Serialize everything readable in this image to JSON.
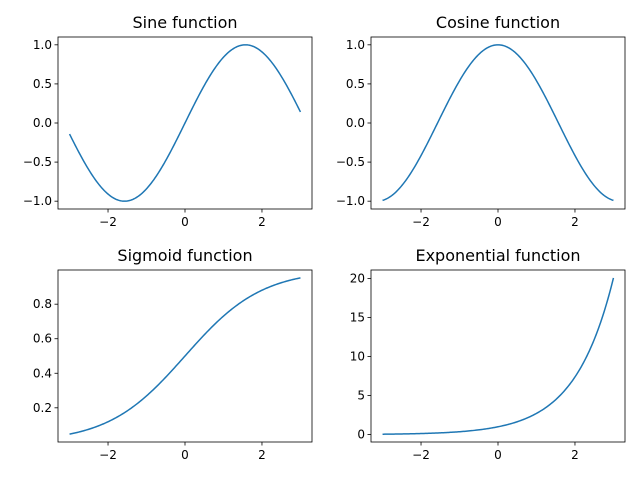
{
  "chart_data": [
    {
      "type": "line",
      "title": "Sine function",
      "function": "sin(x)",
      "x_range": [
        -3,
        3
      ],
      "xlim": [
        -3.3,
        3.3
      ],
      "ylim": [
        -1.1,
        1.1
      ],
      "xticks": [
        -2,
        0,
        2
      ],
      "xtick_labels": [
        "−2",
        "0",
        "2"
      ],
      "yticks": [
        -1,
        -0.5,
        0,
        0.5,
        1
      ],
      "ytick_labels": [
        "−1.0",
        "−0.5",
        "0.0",
        "0.5",
        "1.0"
      ],
      "color": "#1f77b4",
      "grid": false
    },
    {
      "type": "line",
      "title": "Cosine function",
      "function": "cos(x)",
      "x_range": [
        -3,
        3
      ],
      "xlim": [
        -3.3,
        3.3
      ],
      "ylim": [
        -1.1,
        1.1
      ],
      "xticks": [
        -2,
        0,
        2
      ],
      "xtick_labels": [
        "−2",
        "0",
        "2"
      ],
      "yticks": [
        -1,
        -0.5,
        0,
        0.5,
        1
      ],
      "ytick_labels": [
        "−1.0",
        "−0.5",
        "0.0",
        "0.5",
        "1.0"
      ],
      "color": "#1f77b4",
      "grid": false
    },
    {
      "type": "line",
      "title": "Sigmoid function",
      "function": "1/(1+exp(-x))",
      "x_range": [
        -3,
        3
      ],
      "xlim": [
        -3.3,
        3.3
      ],
      "ylim": [
        0.002,
        0.998
      ],
      "xticks": [
        -2,
        0,
        2
      ],
      "xtick_labels": [
        "−2",
        "0",
        "2"
      ],
      "yticks": [
        0.2,
        0.4,
        0.6,
        0.8
      ],
      "ytick_labels": [
        "0.2",
        "0.4",
        "0.6",
        "0.8"
      ],
      "color": "#1f77b4",
      "grid": false
    },
    {
      "type": "line",
      "title": "Exponential function",
      "function": "exp(x)",
      "x_range": [
        -3,
        3
      ],
      "xlim": [
        -3.3,
        3.3
      ],
      "ylim": [
        -0.95,
        21.1
      ],
      "xticks": [
        -2,
        0,
        2
      ],
      "xtick_labels": [
        "−2",
        "0",
        "2"
      ],
      "yticks": [
        0,
        5,
        10,
        15,
        20
      ],
      "ytick_labels": [
        "0",
        "5",
        "10",
        "15",
        "20"
      ],
      "color": "#1f77b4",
      "grid": false
    }
  ]
}
